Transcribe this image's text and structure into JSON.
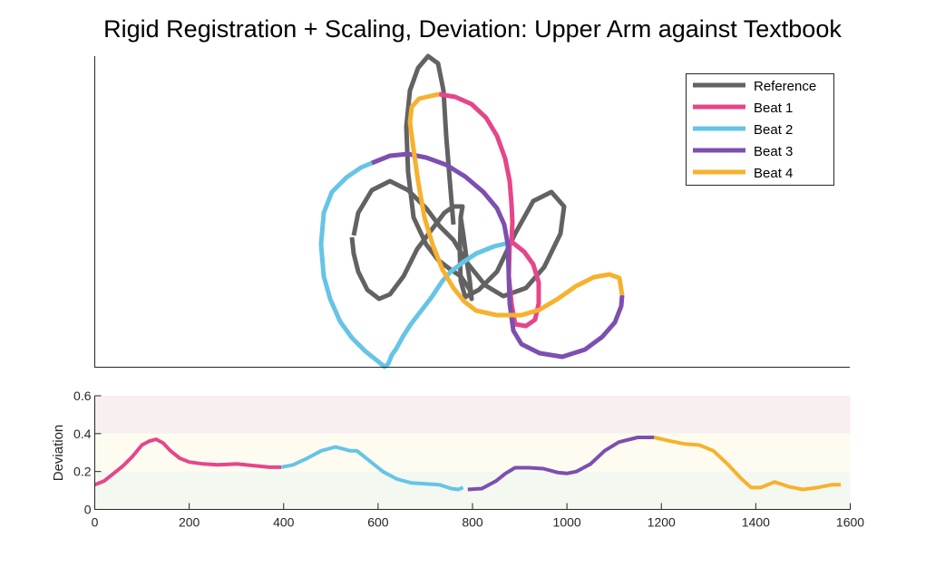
{
  "title": "Rigid Registration + Scaling, Deviation: Upper Arm against Textbook",
  "colors": {
    "reference": "#626262",
    "beat1": "#e5468a",
    "beat2": "#66c4e6",
    "beat3": "#7d4fb0",
    "beat4": "#f7b12e",
    "band_high": "#f8efef",
    "band_mid": "#fefcf0",
    "band_low": "#f3f8f0"
  },
  "chart_data": [
    {
      "type": "line",
      "legend": [
        {
          "name": "Reference",
          "color": "#626262"
        },
        {
          "name": "Beat 1",
          "color": "#e5468a"
        },
        {
          "name": "Beat 2",
          "color": "#66c4e6"
        },
        {
          "name": "Beat 3",
          "color": "#7d4fb0"
        },
        {
          "name": "Beat 4",
          "color": "#f7b12e"
        }
      ],
      "legend_placement": "top-right",
      "axes_visible": "left and bottom lines only, no ticks",
      "series": [
        {
          "name": "Reference",
          "color": "#626262",
          "points": [
            [
              390,
              260
            ],
            [
              395,
              235
            ],
            [
              410,
              210
            ],
            [
              430,
              200
            ],
            [
              450,
              210
            ],
            [
              470,
              230
            ],
            [
              485,
              250
            ],
            [
              500,
              265
            ],
            [
              515,
              290
            ],
            [
              535,
              315
            ],
            [
              555,
              327
            ],
            [
              580,
              318
            ],
            [
              600,
              295
            ],
            [
              618,
              258
            ],
            [
              622,
              228
            ],
            [
              608,
              212
            ],
            [
              588,
              222
            ],
            [
              568,
              258
            ],
            [
              548,
              300
            ],
            [
              528,
              320
            ],
            [
              513,
              328
            ],
            [
              508,
              310
            ],
            [
              507,
              280
            ],
            [
              508,
              240
            ],
            [
              510,
              228
            ],
            [
              500,
              228
            ],
            [
              490,
              235
            ],
            [
              475,
              255
            ],
            [
              460,
              275
            ],
            [
              445,
              305
            ],
            [
              430,
              325
            ],
            [
              418,
              330
            ],
            [
              405,
              320
            ],
            [
              395,
              300
            ],
            [
              390,
              280
            ],
            [
              388,
              262
            ]
          ]
        },
        {
          "name": "Reference",
          "color": "#626262",
          "points": [
            [
              500,
              248
            ],
            [
              496,
              200
            ],
            [
              492,
              150
            ],
            [
              489,
              100
            ],
            [
              483,
              70
            ],
            [
              472,
              62
            ],
            [
              461,
              75
            ],
            [
              452,
              100
            ],
            [
              448,
              140
            ],
            [
              450,
              190
            ],
            [
              456,
              240
            ],
            [
              470,
              270
            ],
            [
              483,
              287
            ],
            [
              496,
              297
            ],
            [
              508,
              305
            ],
            [
              518,
              320
            ],
            [
              520,
              330
            ],
            [
              518,
              310
            ],
            [
              515,
              290
            ],
            [
              511,
              260
            ],
            [
              508,
              240
            ]
          ]
        },
        {
          "name": "Beat 1",
          "color": "#e5468a",
          "points": [
            [
              484,
              104
            ],
            [
              502,
              107
            ],
            [
              520,
              115
            ],
            [
              536,
              130
            ],
            [
              548,
              150
            ],
            [
              557,
              175
            ],
            [
              562,
              200
            ],
            [
              564,
              225
            ],
            [
              565,
              245
            ],
            [
              564,
              267
            ],
            [
              568,
              270
            ],
            [
              578,
              278
            ],
            [
              588,
              292
            ],
            [
              594,
              312
            ],
            [
              594,
              335
            ],
            [
              590,
              353
            ],
            [
              580,
              360
            ],
            [
              568,
              358
            ],
            [
              564,
              335
            ],
            [
              561,
              305
            ],
            [
              562,
              268
            ]
          ]
        },
        {
          "name": "Beat 2",
          "color": "#66c4e6",
          "points": [
            [
              562,
              268
            ],
            [
              545,
              272
            ],
            [
              525,
              280
            ],
            [
              510,
              290
            ],
            [
              497,
              300
            ],
            [
              488,
              310
            ],
            [
              476,
              328
            ],
            [
              463,
              345
            ],
            [
              453,
              358
            ],
            [
              444,
              372
            ],
            [
              437,
              385
            ],
            [
              432,
              392
            ],
            [
              428,
              402
            ],
            [
              424,
              405
            ],
            [
              418,
              400
            ],
            [
              403,
              388
            ],
            [
              388,
              373
            ],
            [
              375,
              355
            ],
            [
              364,
              330
            ],
            [
              357,
              305
            ],
            [
              354,
              270
            ],
            [
              357,
              235
            ],
            [
              366,
              212
            ],
            [
              382,
              196
            ],
            [
              398,
              185
            ],
            [
              410,
              180
            ]
          ]
        },
        {
          "name": "Beat 3",
          "color": "#7d4fb0",
          "points": [
            [
              410,
              180
            ],
            [
              430,
              172
            ],
            [
              450,
              170
            ],
            [
              470,
              174
            ],
            [
              492,
              182
            ],
            [
              513,
              195
            ],
            [
              533,
              212
            ],
            [
              548,
              230
            ],
            [
              556,
              248
            ],
            [
              560,
              270
            ],
            [
              561,
              305
            ],
            [
              562,
              335
            ],
            [
              566,
              365
            ],
            [
              575,
              380
            ],
            [
              595,
              390
            ],
            [
              620,
              394
            ],
            [
              645,
              386
            ],
            [
              664,
              372
            ],
            [
              678,
              356
            ],
            [
              685,
              338
            ],
            [
              686,
              326
            ]
          ]
        },
        {
          "name": "Beat 4",
          "color": "#f7b12e",
          "points": [
            [
              686,
              326
            ],
            [
              683,
              307
            ],
            [
              672,
              303
            ],
            [
              655,
              306
            ],
            [
              635,
              316
            ],
            [
              615,
              330
            ],
            [
              595,
              342
            ],
            [
              575,
              348
            ],
            [
              548,
              348
            ],
            [
              525,
              343
            ],
            [
              512,
              333
            ],
            [
              500,
              318
            ],
            [
              488,
              298
            ],
            [
              477,
              270
            ],
            [
              468,
              240
            ],
            [
              461,
              200
            ],
            [
              456,
              165
            ],
            [
              452,
              135
            ],
            [
              454,
              118
            ],
            [
              462,
              109
            ],
            [
              475,
              106
            ],
            [
              484,
              104
            ]
          ]
        }
      ]
    },
    {
      "type": "line",
      "ylabel": "Deviation",
      "xlim": [
        0,
        1600
      ],
      "ylim": [
        0,
        0.6
      ],
      "x_ticks": [
        0,
        200,
        400,
        600,
        800,
        1000,
        1200,
        1400,
        1600
      ],
      "y_ticks": [
        0,
        0.2,
        0.4,
        0.6
      ],
      "y_tick_labels": [
        "0",
        "0.2",
        "0.4",
        "0.6"
      ],
      "bands": [
        {
          "from": 0.4,
          "to": 0.6,
          "color": "#f8efef"
        },
        {
          "from": 0.2,
          "to": 0.4,
          "color": "#fefcf0"
        },
        {
          "from": 0.0,
          "to": 0.2,
          "color": "#f3f8f0"
        }
      ],
      "series": [
        {
          "name": "Beat 1",
          "color": "#e5468a",
          "x": [
            0,
            20,
            40,
            60,
            80,
            100,
            115,
            130,
            145,
            160,
            180,
            200,
            230,
            260,
            300,
            340,
            370,
            395
          ],
          "y": [
            0.13,
            0.15,
            0.19,
            0.23,
            0.28,
            0.34,
            0.36,
            0.37,
            0.35,
            0.31,
            0.27,
            0.25,
            0.24,
            0.235,
            0.24,
            0.23,
            0.223,
            0.223
          ]
        },
        {
          "name": "Beat 2",
          "color": "#66c4e6",
          "x": [
            395,
            420,
            450,
            480,
            510,
            525,
            540,
            555,
            580,
            610,
            640,
            670,
            700,
            730,
            755,
            770,
            780
          ],
          "y": [
            0.223,
            0.235,
            0.27,
            0.31,
            0.33,
            0.32,
            0.31,
            0.31,
            0.26,
            0.2,
            0.16,
            0.14,
            0.135,
            0.13,
            0.11,
            0.105,
            0.115
          ]
        },
        {
          "name": "Beat 3",
          "color": "#7d4fb0",
          "x": [
            790,
            820,
            850,
            870,
            890,
            920,
            950,
            980,
            1000,
            1020,
            1050,
            1080,
            1110,
            1150,
            1185
          ],
          "y": [
            0.105,
            0.11,
            0.15,
            0.19,
            0.22,
            0.22,
            0.215,
            0.195,
            0.19,
            0.2,
            0.24,
            0.31,
            0.355,
            0.38,
            0.38
          ]
        },
        {
          "name": "Beat 4",
          "color": "#f7b12e",
          "x": [
            1185,
            1220,
            1250,
            1280,
            1310,
            1340,
            1370,
            1390,
            1410,
            1440,
            1470,
            1500,
            1530,
            1560,
            1580
          ],
          "y": [
            0.38,
            0.36,
            0.345,
            0.34,
            0.31,
            0.24,
            0.16,
            0.115,
            0.115,
            0.145,
            0.12,
            0.105,
            0.115,
            0.13,
            0.13
          ]
        }
      ]
    }
  ]
}
